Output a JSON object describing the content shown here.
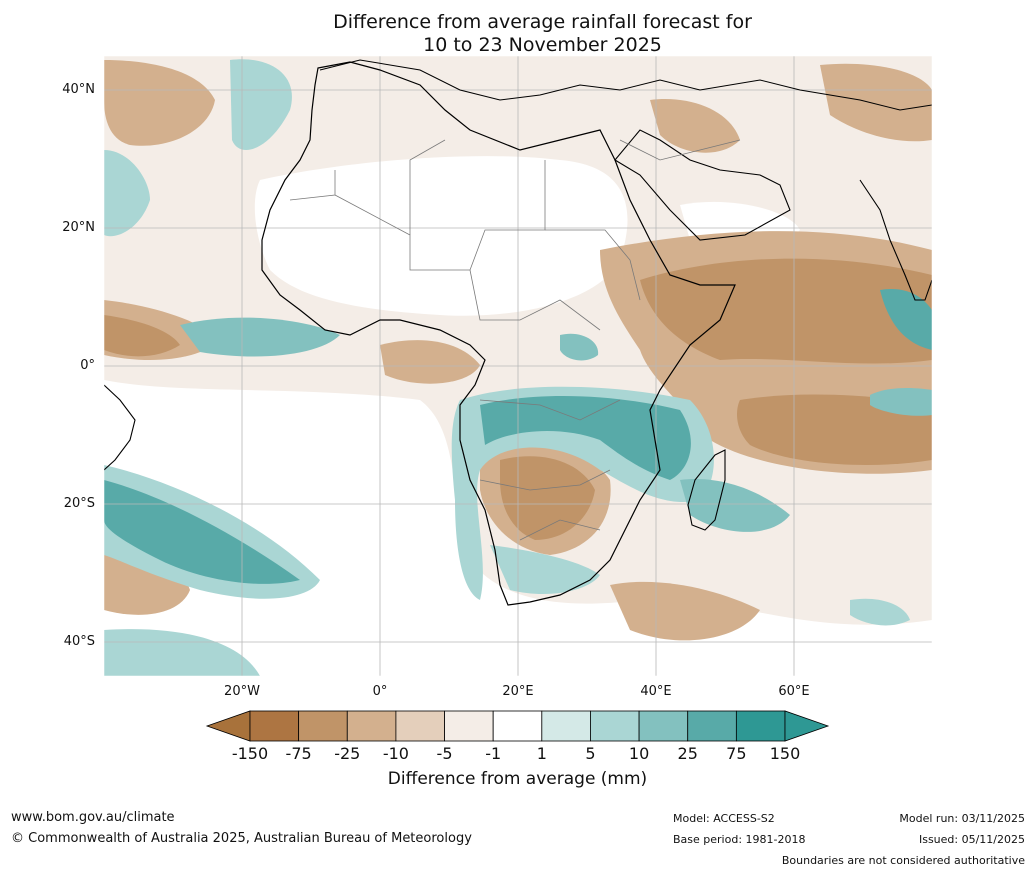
{
  "title": {
    "line1": "Difference from average rainfall forecast for",
    "line2": "10 to 23 November 2025"
  },
  "map": {
    "region": "Africa",
    "lat_labels": [
      "40°N",
      "20°N",
      "0°",
      "20°S",
      "40°S"
    ],
    "lon_labels": [
      "20°W",
      "0°",
      "20°E",
      "40°E",
      "60°E"
    ],
    "ocean_color": "#ffffff",
    "land_border_color": "#000000",
    "boundary_color": "#7a7a7a"
  },
  "colorbar": {
    "ticks": [
      "-150",
      "-75",
      "-25",
      "-10",
      "-5",
      "-1",
      "1",
      "5",
      "10",
      "25",
      "75",
      "150"
    ],
    "colors": [
      "#a8723b",
      "#ad7542",
      "#c09468",
      "#d3b08e",
      "#e4cfbb",
      "#f4ede7",
      "#ffffff",
      "#d4e9e7",
      "#aad6d4",
      "#83c1bf",
      "#58aaa8",
      "#2e9894",
      "#2e9894"
    ],
    "label": "Difference from average (mm)"
  },
  "footer": {
    "url": "www.bom.gov.au/climate",
    "copyright": "© Commonwealth of Australia 2025, Australian Bureau of Meteorology",
    "model": "Model: ACCESS-S2",
    "base_period": "Base period: 1981-2018",
    "model_run": "Model run: 03/11/2025",
    "issued": "Issued: 05/11/2025",
    "disclaimer": "Boundaries are not considered authoritative"
  }
}
